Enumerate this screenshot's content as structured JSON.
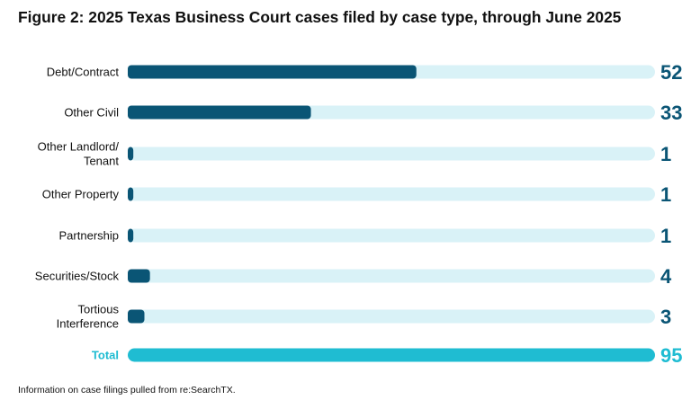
{
  "title": "Figure 2: 2025 Texas Business Court cases filed by case type, through June 2025",
  "source_note": "Information on case filings pulled from re:SearchTX.",
  "colors": {
    "track": "#d9f2f7",
    "bar": "#0a5575",
    "value_text": "#0a5575",
    "total_bar": "#1fbcd2",
    "total_text": "#1fbcd2",
    "label_text": "#111111"
  },
  "chart_data": {
    "type": "bar",
    "orientation": "horizontal",
    "categories": [
      [
        "Debt/Contract"
      ],
      [
        "Other Civil"
      ],
      [
        "Other Landlord/",
        "Tenant"
      ],
      [
        "Other Property"
      ],
      [
        "Partnership"
      ],
      [
        "Securities/Stock"
      ],
      [
        "Tortious",
        "Interference"
      ]
    ],
    "values": [
      52,
      33,
      1,
      1,
      1,
      4,
      3
    ],
    "total": {
      "label": "Total",
      "value": 95
    },
    "xlim": [
      0,
      95
    ],
    "grid": false,
    "legend": "none"
  }
}
